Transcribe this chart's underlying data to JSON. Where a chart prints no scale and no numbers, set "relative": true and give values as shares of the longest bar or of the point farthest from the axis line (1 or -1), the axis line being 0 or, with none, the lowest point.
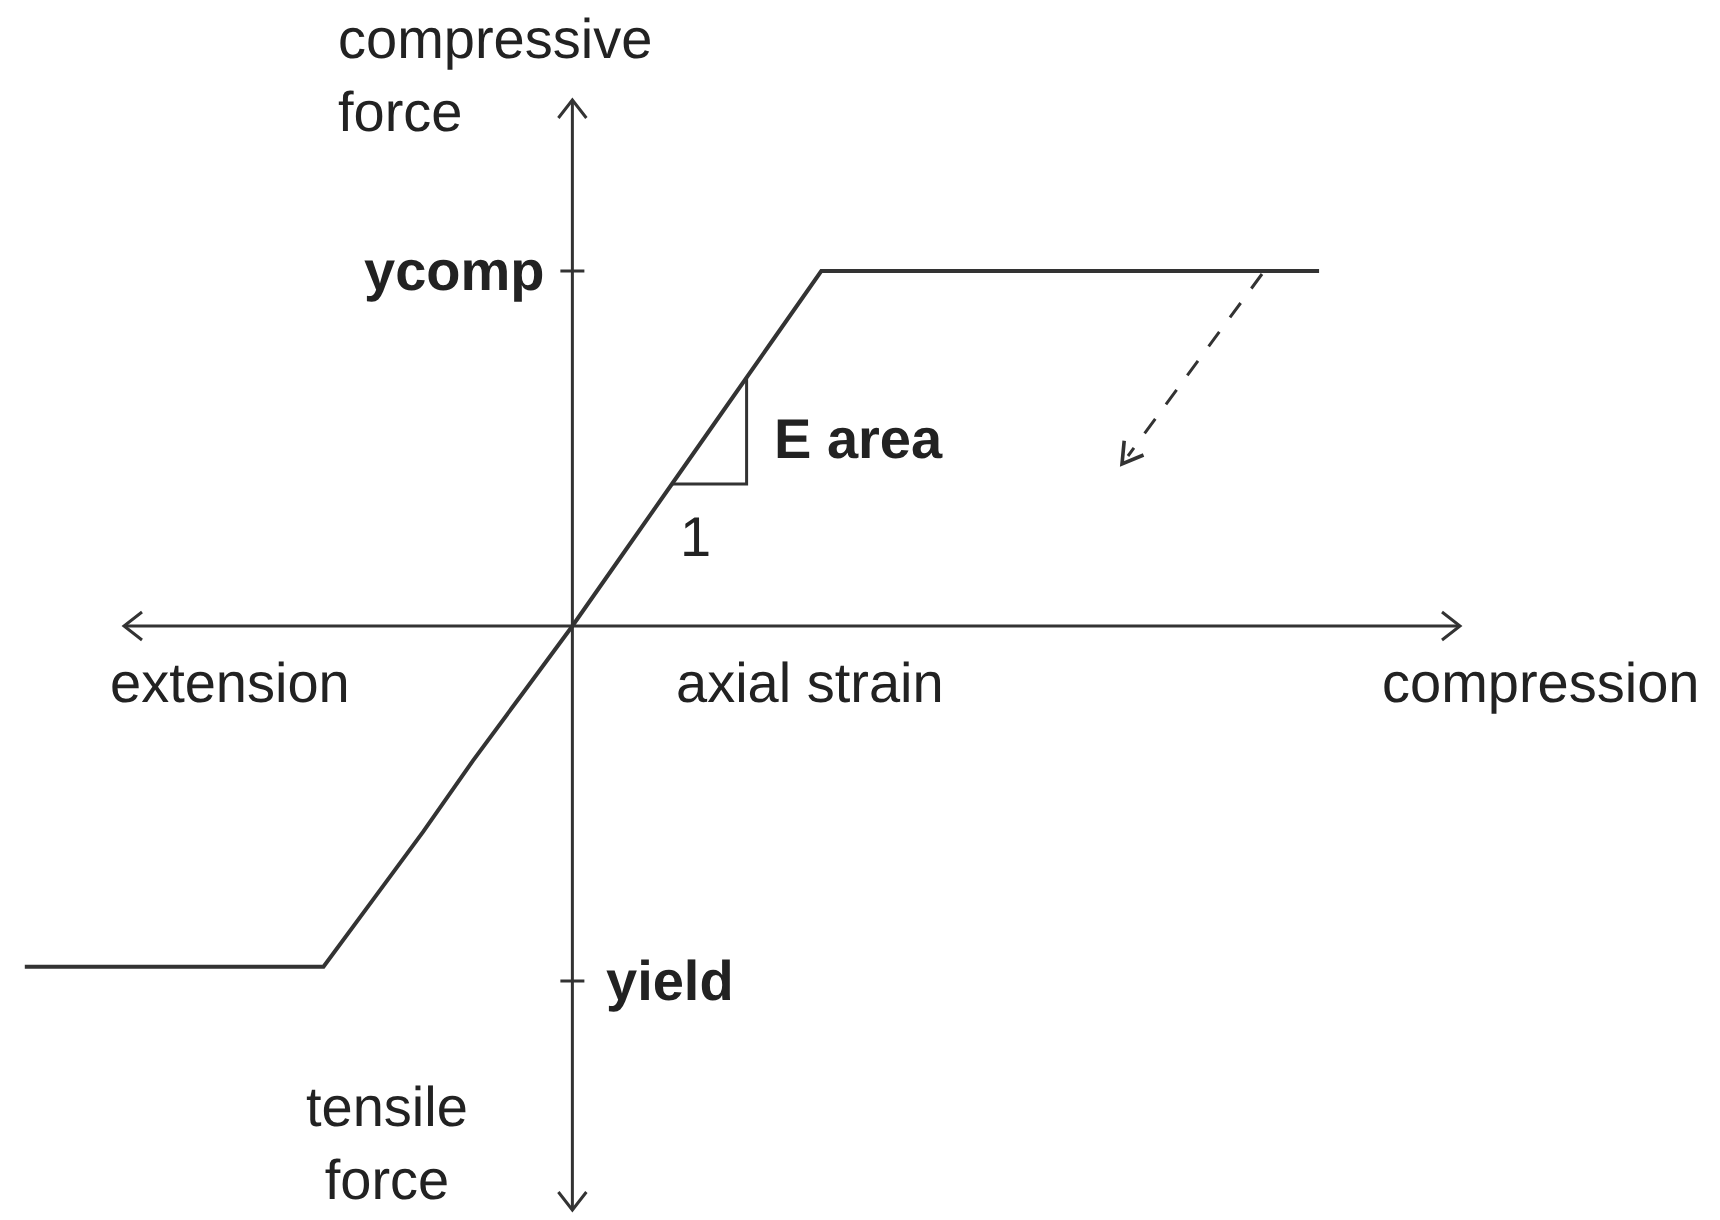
{
  "chart_data": {
    "type": "line",
    "relative": true,
    "categories": [
      null,
      null,
      null,
      null,
      null,
      null,
      null,
      null,
      null,
      null,
      null,
      null,
      null,
      null,
      null,
      null,
      null,
      null,
      null,
      null,
      null,
      null,
      null,
      null,
      null,
      null,
      null
    ],
    "series": [
      {
        "color": "#333333",
        "values": [
          -0.96,
          -0.96,
          -0.96,
          -0.96,
          -0.96,
          -0.96,
          -0.96,
          -0.77,
          -0.58,
          -0.38,
          -0.19,
          0,
          0.2,
          0.4,
          0.6,
          0.8,
          1,
          1,
          1,
          1,
          1,
          1,
          1,
          1,
          1,
          1,
          1
        ]
      }
    ],
    "xlabel": "axial strain",
    "ylabel": "compressive force",
    "annotations": [
      "tensile force",
      "extension",
      "compression",
      "ycomp",
      "yield",
      "E area",
      "1"
    ]
  }
}
